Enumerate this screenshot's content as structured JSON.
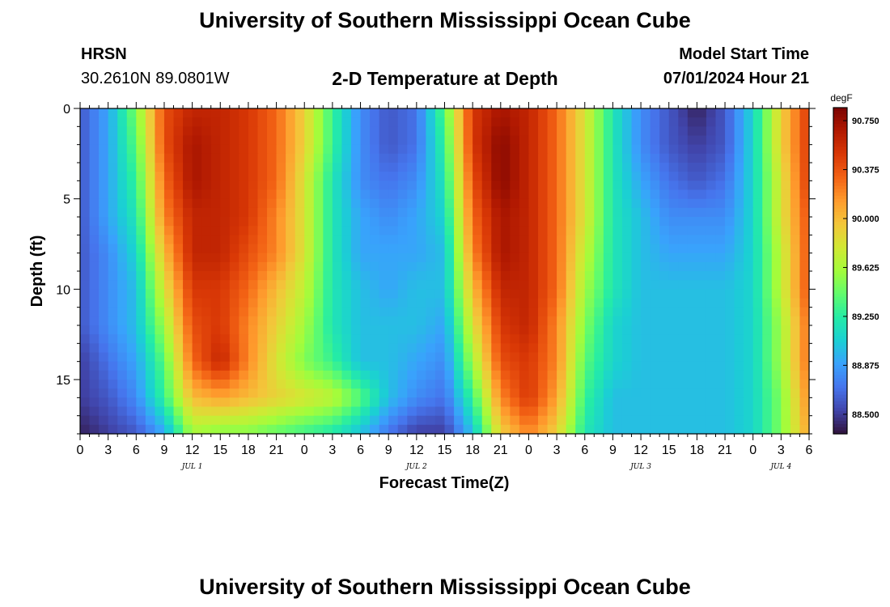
{
  "header": {
    "title": "University of Southern Mississippi Ocean Cube",
    "station": "HRSN",
    "location": "30.2610N  89.0801W",
    "subtitle": "2-D Temperature at Depth",
    "model_label": "Model Start Time",
    "model_time": "07/01/2024 Hour 21"
  },
  "footer": {
    "title": "University of Southern Mississippi Ocean Cube"
  },
  "chart_data": {
    "type": "heatmap",
    "title": "2-D Temperature at Depth",
    "xlabel": "Forecast Time(Z)",
    "ylabel": "Depth (ft)",
    "x_ticks": [
      "0",
      "3",
      "6",
      "9",
      "12",
      "15",
      "18",
      "21",
      "0",
      "3",
      "6",
      "9",
      "12",
      "15",
      "18",
      "21",
      "0",
      "3",
      "6",
      "9",
      "12",
      "15",
      "18",
      "21",
      "0",
      "3",
      "6"
    ],
    "date_labels": [
      {
        "label": "JUL 1",
        "at_hour": 12
      },
      {
        "label": "JUL 2",
        "at_hour": 36
      },
      {
        "label": "JUL 3",
        "at_hour": 60
      },
      {
        "label": "JUL 4",
        "at_hour": 75
      }
    ],
    "x_range_hours": [
      0,
      78
    ],
    "y_ticks": [
      "0",
      "5",
      "10",
      "15"
    ],
    "y_tick_values": [
      0,
      5,
      10,
      15
    ],
    "y_range_ft": [
      0,
      18
    ],
    "colorbar": {
      "unit": "degF",
      "ticks": [
        "90.750",
        "90.375",
        "90.000",
        "89.625",
        "89.250",
        "88.875",
        "88.500"
      ],
      "tick_values": [
        90.75,
        90.375,
        90.0,
        89.625,
        89.25,
        88.875,
        88.5
      ],
      "range": [
        88.35,
        90.85
      ],
      "colors": [
        "#30123b",
        "#4145ab",
        "#4675ed",
        "#39a2fc",
        "#1bcfd4",
        "#24eca6",
        "#61fc6c",
        "#a4fc3b",
        "#d1e834",
        "#f3c63a",
        "#fe9b2d",
        "#f36315",
        "#d93806",
        "#b11901",
        "#7a0402"
      ]
    },
    "temperature_grid": {
      "description": "Temperature (degF) sampled every 3 h (0..78 h) at depths 0,2,4,...,18 ft",
      "hours": [
        0,
        3,
        6,
        9,
        12,
        15,
        18,
        21,
        24,
        27,
        30,
        33,
        36,
        39,
        42,
        45,
        48,
        51,
        54,
        57,
        60,
        63,
        66,
        69,
        72,
        75,
        78
      ],
      "depths_ft": [
        0,
        2,
        4,
        6,
        8,
        10,
        12,
        14,
        16,
        18
      ],
      "values": [
        [
          88.6,
          88.9,
          89.5,
          90.4,
          90.6,
          90.6,
          90.5,
          90.3,
          89.9,
          89.3,
          88.8,
          88.6,
          88.7,
          89.4,
          90.5,
          90.7,
          90.6,
          90.3,
          89.8,
          89.2,
          88.8,
          88.6,
          88.4,
          88.6,
          89.1,
          89.9,
          90.5
        ],
        [
          88.6,
          88.9,
          89.4,
          90.4,
          90.7,
          90.6,
          90.5,
          90.3,
          89.9,
          89.3,
          88.8,
          88.6,
          88.7,
          89.3,
          90.5,
          90.8,
          90.6,
          90.3,
          89.8,
          89.2,
          88.8,
          88.6,
          88.5,
          88.6,
          89.1,
          89.9,
          90.5
        ],
        [
          88.6,
          88.9,
          89.3,
          90.3,
          90.7,
          90.6,
          90.5,
          90.3,
          89.8,
          89.2,
          88.8,
          88.7,
          88.8,
          89.2,
          90.4,
          90.8,
          90.6,
          90.3,
          89.8,
          89.2,
          88.9,
          88.7,
          88.6,
          88.7,
          89.1,
          89.8,
          90.5
        ],
        [
          88.6,
          88.9,
          89.2,
          90.2,
          90.6,
          90.6,
          90.5,
          90.2,
          89.8,
          89.2,
          88.9,
          88.8,
          88.9,
          89.1,
          90.3,
          90.7,
          90.6,
          90.3,
          89.8,
          89.2,
          89.0,
          88.8,
          88.8,
          88.8,
          89.1,
          89.8,
          90.4
        ],
        [
          88.6,
          88.8,
          89.1,
          90.0,
          90.6,
          90.6,
          90.4,
          90.2,
          89.8,
          89.2,
          88.9,
          88.9,
          88.9,
          89.0,
          90.2,
          90.7,
          90.6,
          90.3,
          89.7,
          89.2,
          89.0,
          88.9,
          88.9,
          88.9,
          89.1,
          89.7,
          90.4
        ],
        [
          88.6,
          88.8,
          89.0,
          89.8,
          90.5,
          90.5,
          90.3,
          90.0,
          89.7,
          89.2,
          89.0,
          88.9,
          89.0,
          89.0,
          90.0,
          90.6,
          90.6,
          90.3,
          89.6,
          89.2,
          89.0,
          89.0,
          89.0,
          89.0,
          89.1,
          89.7,
          90.4
        ],
        [
          88.6,
          88.8,
          89.0,
          89.6,
          90.4,
          90.5,
          90.2,
          89.9,
          89.6,
          89.2,
          89.0,
          89.0,
          89.0,
          88.9,
          89.8,
          90.5,
          90.6,
          90.2,
          89.5,
          89.1,
          89.0,
          89.0,
          89.0,
          89.0,
          89.1,
          89.6,
          90.3
        ],
        [
          88.5,
          88.7,
          88.9,
          89.4,
          90.3,
          90.6,
          90.2,
          89.8,
          89.5,
          89.3,
          89.0,
          89.0,
          88.9,
          88.8,
          89.6,
          90.4,
          90.5,
          90.2,
          89.4,
          89.1,
          89.0,
          89.0,
          89.0,
          89.0,
          89.1,
          89.6,
          90.3
        ],
        [
          88.5,
          88.6,
          88.8,
          89.3,
          90.0,
          90.1,
          90.0,
          89.9,
          89.8,
          89.7,
          89.4,
          89.0,
          88.8,
          88.7,
          89.3,
          90.2,
          90.5,
          90.1,
          89.3,
          89.0,
          89.0,
          89.0,
          89.0,
          89.0,
          89.1,
          89.5,
          90.2
        ],
        [
          88.4,
          88.5,
          88.6,
          88.9,
          89.6,
          89.5,
          89.5,
          89.4,
          89.3,
          89.2,
          89.0,
          88.7,
          88.5,
          88.5,
          89.0,
          89.9,
          90.2,
          89.9,
          89.2,
          89.0,
          89.0,
          89.0,
          89.0,
          89.0,
          89.1,
          89.5,
          90.1
        ]
      ]
    }
  }
}
